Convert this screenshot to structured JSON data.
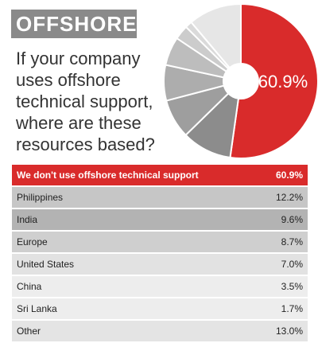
{
  "header": {
    "title": "OFFSHORE"
  },
  "question": "If your company uses offshore technical support, where are these resources based?",
  "chart_data": {
    "type": "pie",
    "categories": [
      "We don't use offshore technical support",
      "Philippines",
      "India",
      "Europe",
      "United States",
      "China",
      "Sri Lanka",
      "Other"
    ],
    "values": [
      60.9,
      12.2,
      9.6,
      8.7,
      7.0,
      3.5,
      1.7,
      13.0
    ],
    "value_labels": [
      "60.9%",
      "12.2%",
      "9.6%",
      "8.7%",
      "7.0%",
      "3.5%",
      "1.7%",
      "13.0%"
    ],
    "slice_label": "60.9%",
    "colors": [
      "#d92b2b",
      "#8c8c8c",
      "#9e9e9e",
      "#adadad",
      "#bdbdbd",
      "#cccccc",
      "#dadada",
      "#e6e6e6"
    ]
  }
}
